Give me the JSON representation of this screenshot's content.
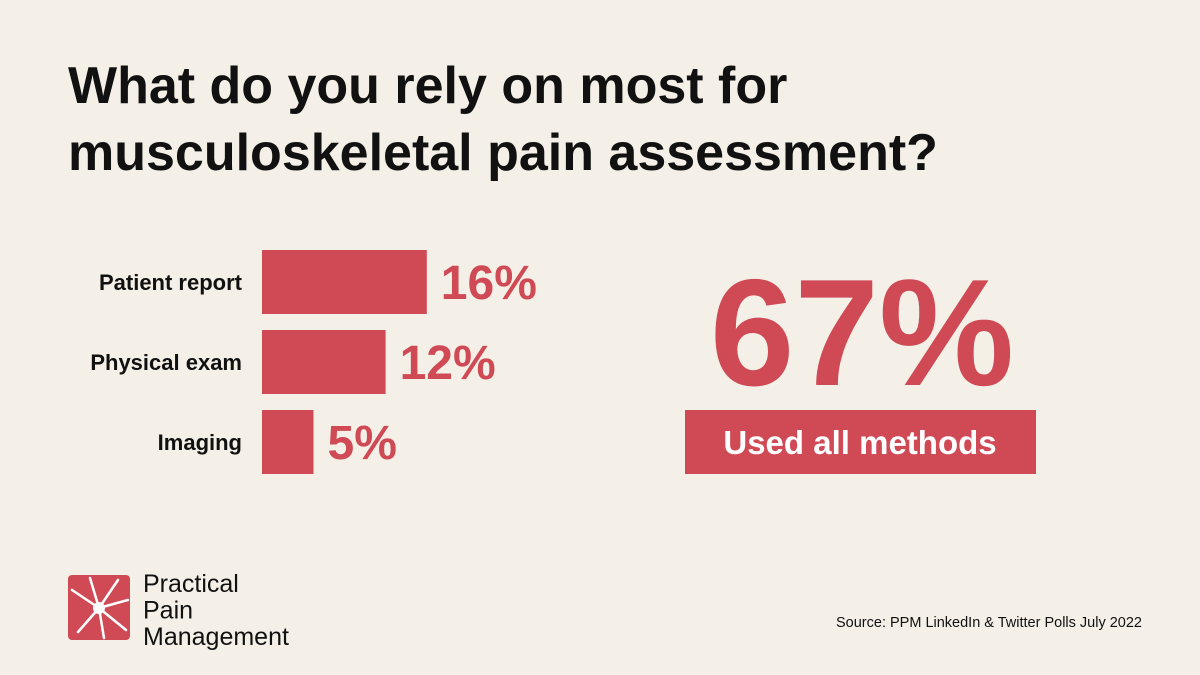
{
  "chart_data": {
    "type": "bar",
    "title": "What do you rely on most for musculoskeletal pain assessment?",
    "categories": [
      "Patient report",
      "Physical exam",
      "Imaging"
    ],
    "values": [
      16,
      12,
      5
    ],
    "value_labels": [
      "16%",
      "12%",
      "5%"
    ],
    "color": "#cf4a55"
  },
  "highlight": {
    "label": "67%",
    "caption": "Used all methods"
  },
  "logo": {
    "lines": [
      "Practical",
      "Pain",
      "Management"
    ]
  },
  "source": "Source: PPM LinkedIn & Twitter Polls July 2022"
}
